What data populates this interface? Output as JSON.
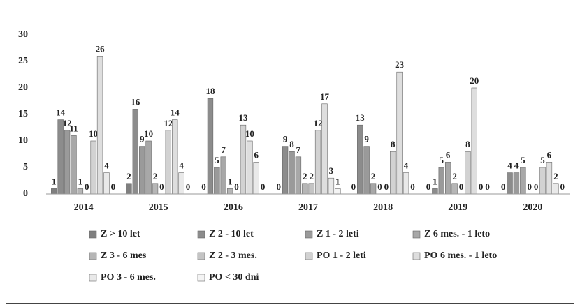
{
  "chart_data": {
    "type": "bar",
    "categories": [
      "2014",
      "2015",
      "2016",
      "2017",
      "2018",
      "2019",
      "2020"
    ],
    "series": [
      {
        "name": "Z > 10 let",
        "color": "#7f7f7f",
        "values": [
          1,
          2,
          0,
          0,
          0,
          0,
          0
        ]
      },
      {
        "name": "Z 2 - 10 let",
        "color": "#8c8c8c",
        "values": [
          14,
          16,
          18,
          9,
          13,
          1,
          4
        ]
      },
      {
        "name": "Z 1 - 2 leti",
        "color": "#9a9a9a",
        "values": [
          12,
          9,
          5,
          8,
          9,
          5,
          4
        ]
      },
      {
        "name": "Z 6 mes. - 1 leto",
        "color": "#a8a8a8",
        "values": [
          11,
          10,
          7,
          7,
          2,
          6,
          5
        ]
      },
      {
        "name": "Z 3 - 6 mes",
        "color": "#b6b6b6",
        "values": [
          1,
          2,
          1,
          2,
          0,
          2,
          0
        ]
      },
      {
        "name": "Z 2 - 3 mes.",
        "color": "#c4c4c4",
        "values": [
          0,
          0,
          0,
          2,
          0,
          0,
          0
        ]
      },
      {
        "name": "PO 1 - 2 leti",
        "color": "#d2d2d2",
        "values": [
          10,
          12,
          13,
          12,
          8,
          8,
          5
        ]
      },
      {
        "name": "PO 6 mes. - 1 leto",
        "color": "#dedede",
        "values": [
          26,
          14,
          10,
          17,
          23,
          20,
          6
        ]
      },
      {
        "name": "PO 3 - 6 mes.",
        "color": "#e9e9e9",
        "values": [
          4,
          4,
          6,
          3,
          4,
          0,
          2
        ]
      },
      {
        "name": "PO < 30 dni",
        "color": "#f4f4f4",
        "values": [
          0,
          0,
          0,
          1,
          0,
          0,
          0
        ]
      }
    ],
    "ylim": [
      0,
      30
    ],
    "yticks": [
      0,
      5,
      10,
      15,
      20,
      25,
      30
    ],
    "grid": false
  }
}
